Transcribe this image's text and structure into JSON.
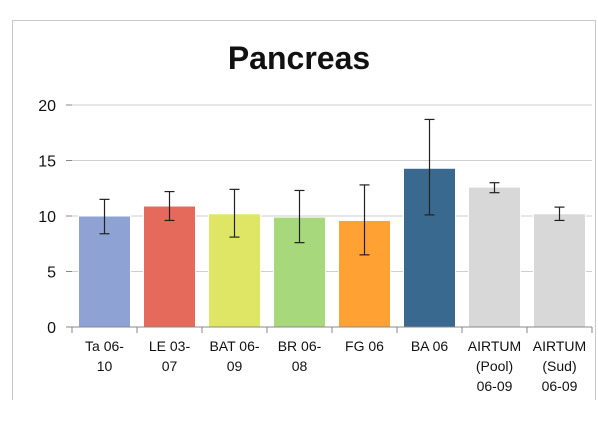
{
  "chart_data": {
    "type": "bar",
    "title": "Pancreas",
    "xlabel": "",
    "ylabel": "",
    "ylim": [
      0,
      20
    ],
    "yticks": [
      0,
      5,
      10,
      15,
      20
    ],
    "grid": true,
    "categories": [
      [
        "Ta 06-",
        "10"
      ],
      [
        "LE 03-",
        "07"
      ],
      [
        "BAT 06-",
        "09"
      ],
      [
        "BR 06-",
        "08"
      ],
      [
        "FG 06"
      ],
      [
        "BA 06"
      ],
      [
        "AIRTUM",
        "(Pool)",
        "06-09"
      ],
      [
        "AIRTUM",
        "(Sud)",
        "06-09"
      ]
    ],
    "values": [
      10.0,
      10.9,
      10.2,
      9.9,
      9.6,
      14.3,
      12.6,
      10.2
    ],
    "error_low": [
      8.4,
      9.6,
      8.1,
      7.6,
      6.5,
      10.1,
      12.1,
      9.6
    ],
    "error_high": [
      11.5,
      12.2,
      12.4,
      12.3,
      12.8,
      18.7,
      13.0,
      10.8
    ],
    "colors": [
      "#8ea3d4",
      "#e56a5c",
      "#dfe665",
      "#a8d87c",
      "#ffa133",
      "#3a6990",
      "#d8d8d8",
      "#d8d8d8"
    ]
  }
}
